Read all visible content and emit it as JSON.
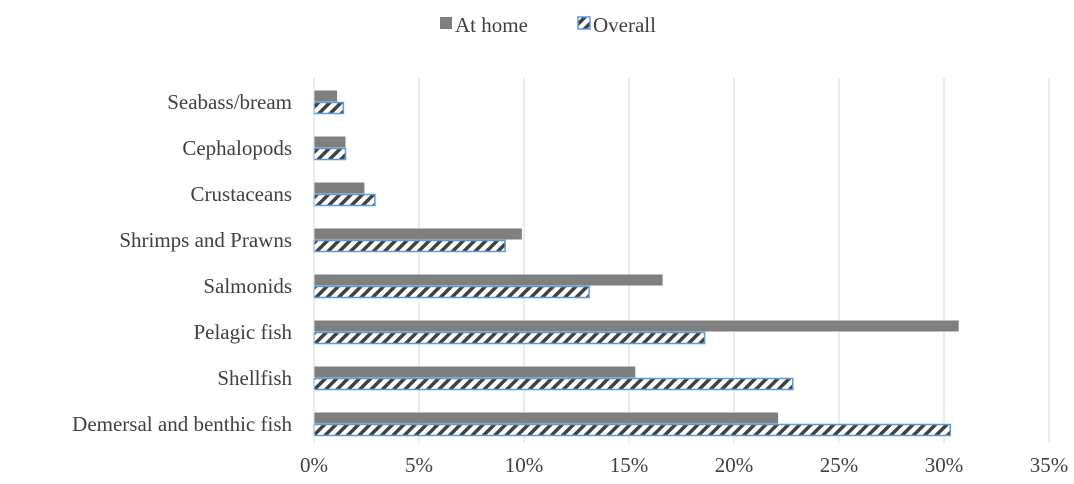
{
  "chart_data": {
    "type": "bar",
    "orientation": "horizontal",
    "title": "",
    "xlabel": "",
    "ylabel": "",
    "xlim": [
      0,
      35
    ],
    "x_tick_labels": [
      "0%",
      "5%",
      "10%",
      "15%",
      "20%",
      "25%",
      "30%",
      "35%"
    ],
    "grid": "vertical",
    "legend_position": "top",
    "categories": [
      "Seabass/bream",
      "Cephalopods",
      "Crustaceans",
      "Shrimps and Prawns",
      "Salmonids",
      "Pelagic fish",
      "Shellfish",
      "Demersal and benthic fish"
    ],
    "series": [
      {
        "name": "At home",
        "values": [
          1.1,
          1.5,
          2.4,
          9.9,
          16.6,
          30.7,
          15.3,
          22.1
        ],
        "color": "#7f7f7f",
        "pattern": "solid"
      },
      {
        "name": "Overall",
        "values": [
          1.4,
          1.5,
          2.9,
          9.1,
          13.1,
          18.6,
          22.8,
          30.3
        ],
        "color": "#404040",
        "border_color": "#5b9bd5",
        "pattern": "diagonal-stripes"
      }
    ]
  }
}
